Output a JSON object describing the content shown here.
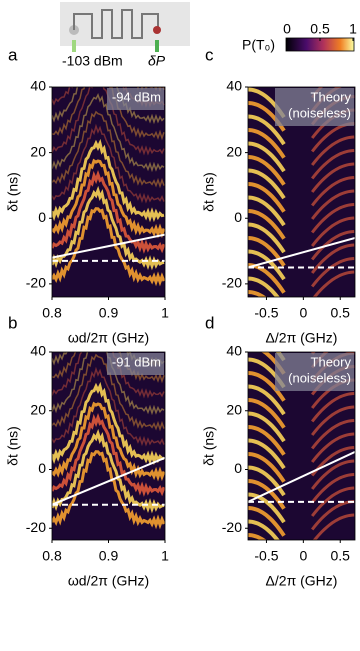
{
  "chart_data": [
    {
      "type": "heatmap",
      "panel_label": "a",
      "annotation": [
        "-94 dBm"
      ],
      "xlabel": "ωd/2π (GHz)",
      "ylabel": "δt (ns)",
      "xlim": [
        0.8,
        1
      ],
      "xticks": [
        0.8,
        0.9,
        1
      ],
      "ylim": [
        -24,
        40
      ],
      "yticks": [
        -20,
        0,
        20,
        40
      ],
      "lines": [
        {
          "style": "solid",
          "x": [
            0.8,
            1
          ],
          "y": [
            -12,
            -5
          ]
        },
        {
          "style": "dashed",
          "x": [
            0.8,
            1
          ],
          "y": [
            -13,
            -13
          ]
        }
      ]
    },
    {
      "type": "heatmap",
      "panel_label": "b",
      "annotation": [
        "-91 dBm"
      ],
      "xlabel": "ωd/2π (GHz)",
      "ylabel": "δt (ns)",
      "xlim": [
        0.8,
        1
      ],
      "xticks": [
        0.8,
        0.9,
        1
      ],
      "ylim": [
        -24,
        40
      ],
      "yticks": [
        -20,
        0,
        20,
        40
      ],
      "lines": [
        {
          "style": "solid",
          "x": [
            0.8,
            1
          ],
          "y": [
            -12,
            4
          ]
        },
        {
          "style": "dashed",
          "x": [
            0.8,
            1
          ],
          "y": [
            -12,
            -12
          ]
        }
      ]
    },
    {
      "type": "heatmap",
      "panel_label": "c",
      "annotation": [
        "Theory",
        "(noiseless)"
      ],
      "xlabel": "Δ/2π (GHz)",
      "ylabel": "δt (ns)",
      "xlim": [
        -0.75,
        0.7
      ],
      "xticks": [
        -0.5,
        0,
        0.5
      ],
      "ylim": [
        -24,
        40
      ],
      "yticks": [
        -20,
        0,
        20,
        40
      ],
      "lines": [
        {
          "style": "solid",
          "x": [
            -0.75,
            0.7
          ],
          "y": [
            -15,
            -6
          ]
        },
        {
          "style": "dashed",
          "x": [
            -0.75,
            0.7
          ],
          "y": [
            -15,
            -15
          ]
        }
      ]
    },
    {
      "type": "heatmap",
      "panel_label": "d",
      "annotation": [
        "Theory",
        "(noiseless)"
      ],
      "xlabel": "Δ/2π (GHz)",
      "ylabel": "δt (ns)",
      "xlim": [
        -0.75,
        0.7
      ],
      "xticks": [
        -0.5,
        0,
        0.5
      ],
      "ylim": [
        -24,
        40
      ],
      "yticks": [
        -20,
        0,
        20,
        40
      ],
      "lines": [
        {
          "style": "solid",
          "x": [
            -0.75,
            0.7
          ],
          "y": [
            -11,
            6
          ]
        },
        {
          "style": "dashed",
          "x": [
            -0.75,
            0.7
          ],
          "y": [
            -11,
            -11
          ]
        }
      ]
    }
  ],
  "colorbar": {
    "label": "P(T₀)",
    "lim": [
      0,
      1
    ],
    "ticks": [
      0,
      0.5,
      1
    ]
  },
  "inset": {
    "power": "-103 dBm",
    "drive": "δP"
  }
}
